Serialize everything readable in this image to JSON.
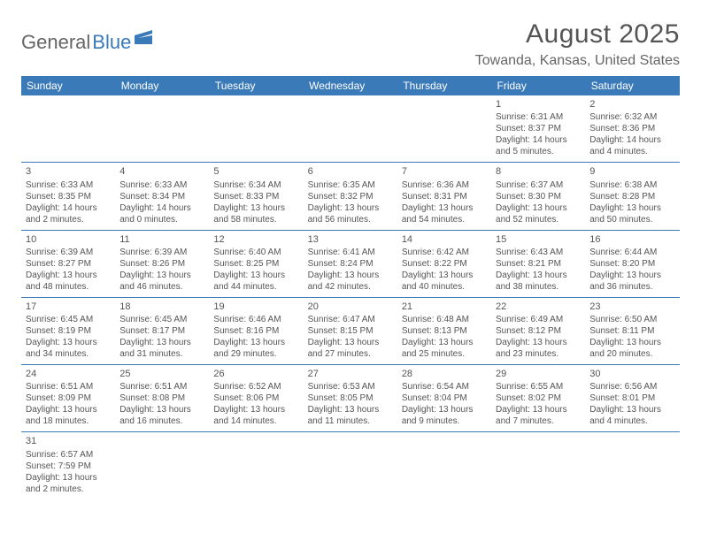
{
  "logo": {
    "text1": "General",
    "text2": "Blue"
  },
  "title": "August 2025",
  "location": "Towanda, Kansas, United States",
  "weekdays": [
    "Sunday",
    "Monday",
    "Tuesday",
    "Wednesday",
    "Thursday",
    "Friday",
    "Saturday"
  ],
  "colors": {
    "header_bg": "#3a7ab8",
    "header_fg": "#ffffff",
    "border": "#3a7ab8",
    "text": "#555555",
    "page_bg": "#ffffff"
  },
  "typography": {
    "title_fontsize": 30,
    "location_fontsize": 16,
    "weekday_fontsize": 12,
    "cell_fontsize": 10,
    "daynum_fontsize": 11
  },
  "layout": {
    "columns": 7,
    "rows": 6,
    "first_weekday_index": 5
  },
  "days": [
    {
      "n": 1,
      "sunrise": "6:31 AM",
      "sunset": "8:37 PM",
      "daylight": "14 hours and 5 minutes."
    },
    {
      "n": 2,
      "sunrise": "6:32 AM",
      "sunset": "8:36 PM",
      "daylight": "14 hours and 4 minutes."
    },
    {
      "n": 3,
      "sunrise": "6:33 AM",
      "sunset": "8:35 PM",
      "daylight": "14 hours and 2 minutes."
    },
    {
      "n": 4,
      "sunrise": "6:33 AM",
      "sunset": "8:34 PM",
      "daylight": "14 hours and 0 minutes."
    },
    {
      "n": 5,
      "sunrise": "6:34 AM",
      "sunset": "8:33 PM",
      "daylight": "13 hours and 58 minutes."
    },
    {
      "n": 6,
      "sunrise": "6:35 AM",
      "sunset": "8:32 PM",
      "daylight": "13 hours and 56 minutes."
    },
    {
      "n": 7,
      "sunrise": "6:36 AM",
      "sunset": "8:31 PM",
      "daylight": "13 hours and 54 minutes."
    },
    {
      "n": 8,
      "sunrise": "6:37 AM",
      "sunset": "8:30 PM",
      "daylight": "13 hours and 52 minutes."
    },
    {
      "n": 9,
      "sunrise": "6:38 AM",
      "sunset": "8:28 PM",
      "daylight": "13 hours and 50 minutes."
    },
    {
      "n": 10,
      "sunrise": "6:39 AM",
      "sunset": "8:27 PM",
      "daylight": "13 hours and 48 minutes."
    },
    {
      "n": 11,
      "sunrise": "6:39 AM",
      "sunset": "8:26 PM",
      "daylight": "13 hours and 46 minutes."
    },
    {
      "n": 12,
      "sunrise": "6:40 AM",
      "sunset": "8:25 PM",
      "daylight": "13 hours and 44 minutes."
    },
    {
      "n": 13,
      "sunrise": "6:41 AM",
      "sunset": "8:24 PM",
      "daylight": "13 hours and 42 minutes."
    },
    {
      "n": 14,
      "sunrise": "6:42 AM",
      "sunset": "8:22 PM",
      "daylight": "13 hours and 40 minutes."
    },
    {
      "n": 15,
      "sunrise": "6:43 AM",
      "sunset": "8:21 PM",
      "daylight": "13 hours and 38 minutes."
    },
    {
      "n": 16,
      "sunrise": "6:44 AM",
      "sunset": "8:20 PM",
      "daylight": "13 hours and 36 minutes."
    },
    {
      "n": 17,
      "sunrise": "6:45 AM",
      "sunset": "8:19 PM",
      "daylight": "13 hours and 34 minutes."
    },
    {
      "n": 18,
      "sunrise": "6:45 AM",
      "sunset": "8:17 PM",
      "daylight": "13 hours and 31 minutes."
    },
    {
      "n": 19,
      "sunrise": "6:46 AM",
      "sunset": "8:16 PM",
      "daylight": "13 hours and 29 minutes."
    },
    {
      "n": 20,
      "sunrise": "6:47 AM",
      "sunset": "8:15 PM",
      "daylight": "13 hours and 27 minutes."
    },
    {
      "n": 21,
      "sunrise": "6:48 AM",
      "sunset": "8:13 PM",
      "daylight": "13 hours and 25 minutes."
    },
    {
      "n": 22,
      "sunrise": "6:49 AM",
      "sunset": "8:12 PM",
      "daylight": "13 hours and 23 minutes."
    },
    {
      "n": 23,
      "sunrise": "6:50 AM",
      "sunset": "8:11 PM",
      "daylight": "13 hours and 20 minutes."
    },
    {
      "n": 24,
      "sunrise": "6:51 AM",
      "sunset": "8:09 PM",
      "daylight": "13 hours and 18 minutes."
    },
    {
      "n": 25,
      "sunrise": "6:51 AM",
      "sunset": "8:08 PM",
      "daylight": "13 hours and 16 minutes."
    },
    {
      "n": 26,
      "sunrise": "6:52 AM",
      "sunset": "8:06 PM",
      "daylight": "13 hours and 14 minutes."
    },
    {
      "n": 27,
      "sunrise": "6:53 AM",
      "sunset": "8:05 PM",
      "daylight": "13 hours and 11 minutes."
    },
    {
      "n": 28,
      "sunrise": "6:54 AM",
      "sunset": "8:04 PM",
      "daylight": "13 hours and 9 minutes."
    },
    {
      "n": 29,
      "sunrise": "6:55 AM",
      "sunset": "8:02 PM",
      "daylight": "13 hours and 7 minutes."
    },
    {
      "n": 30,
      "sunrise": "6:56 AM",
      "sunset": "8:01 PM",
      "daylight": "13 hours and 4 minutes."
    },
    {
      "n": 31,
      "sunrise": "6:57 AM",
      "sunset": "7:59 PM",
      "daylight": "13 hours and 2 minutes."
    }
  ]
}
